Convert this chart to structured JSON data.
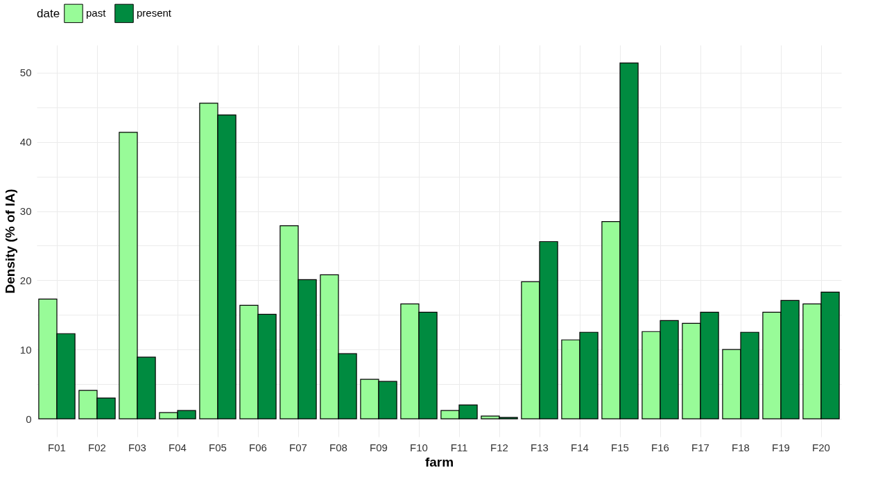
{
  "chart_data": {
    "type": "bar",
    "xlabel": "farm",
    "ylabel": "Density (% of IA)",
    "legend_title": "date",
    "categories": [
      "F01",
      "F02",
      "F03",
      "F04",
      "F05",
      "F06",
      "F07",
      "F08",
      "F09",
      "F10",
      "F11",
      "F12",
      "F13",
      "F14",
      "F15",
      "F16",
      "F17",
      "F18",
      "F19",
      "F20"
    ],
    "series": [
      {
        "name": "past",
        "color": "#98fb98",
        "values": [
          17.3,
          4.1,
          41.4,
          0.9,
          45.6,
          16.4,
          27.9,
          20.8,
          5.7,
          16.6,
          1.2,
          0.4,
          19.8,
          11.4,
          28.5,
          12.6,
          13.8,
          10.0,
          15.4,
          16.6
        ]
      },
      {
        "name": "present",
        "color": "#008b40",
        "values": [
          12.3,
          3.0,
          8.9,
          1.2,
          43.9,
          15.1,
          20.1,
          9.4,
          5.4,
          15.4,
          2.0,
          0.2,
          25.6,
          12.5,
          51.4,
          14.2,
          15.4,
          12.5,
          17.1,
          18.3
        ]
      }
    ],
    "ylim": [
      -2.6,
      54
    ],
    "yticks": [
      0,
      {
        "value": 5,
        "label": null
      },
      10,
      {
        "value": 15,
        "label": null
      },
      20,
      {
        "value": 25,
        "label": null
      },
      30,
      {
        "value": 35,
        "label": null
      },
      40,
      {
        "value": 45,
        "label": null
      },
      50
    ],
    "grid": true,
    "legend": "top"
  }
}
